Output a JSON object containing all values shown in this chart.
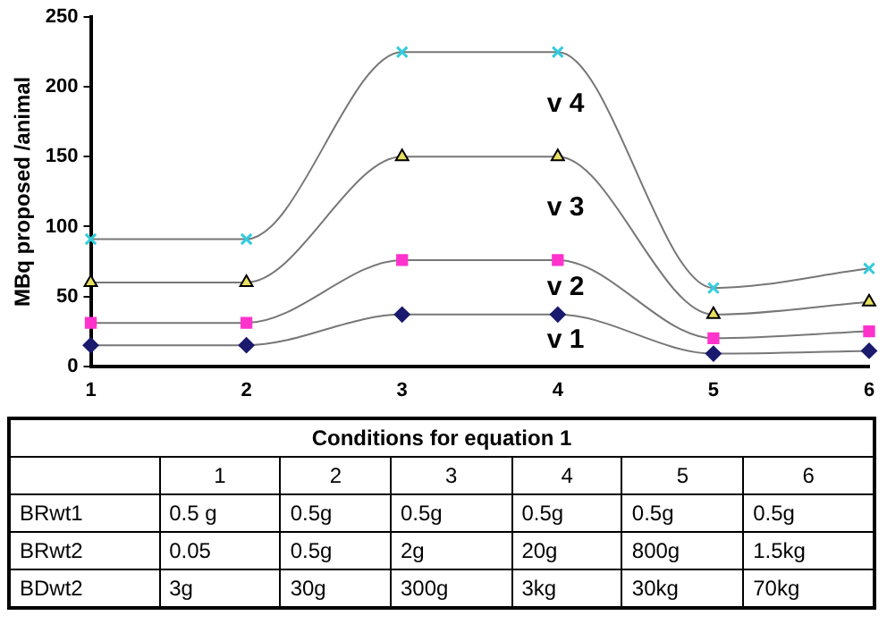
{
  "chart_data": {
    "type": "line",
    "ylabel": "MBq proposed /animal",
    "x": [
      1,
      2,
      3,
      4,
      5,
      6
    ],
    "xlim": [
      1,
      6
    ],
    "xticks": [
      1,
      2,
      3,
      4,
      5,
      6
    ],
    "ylim": [
      0,
      250
    ],
    "yticks": [
      0,
      50,
      100,
      150,
      200,
      250
    ],
    "grid": false,
    "legend": false,
    "series": [
      {
        "name": "v 1",
        "color": "#1a1a6e",
        "marker": "diamond",
        "values": [
          15,
          15,
          37,
          37,
          9,
          11
        ]
      },
      {
        "name": "v 2",
        "color": "#ff33cc",
        "marker": "square",
        "values": [
          31,
          31,
          76,
          76,
          20,
          25
        ]
      },
      {
        "name": "v 3",
        "color": "#e8e060",
        "marker": "triangle",
        "values": [
          60,
          60,
          150,
          150,
          37,
          46
        ]
      },
      {
        "name": "v 4",
        "color": "#33ccdd",
        "marker": "cross",
        "values": [
          91,
          91,
          225,
          225,
          56,
          70
        ]
      }
    ],
    "annotations": [
      "Conditions for equation 1",
      "1",
      "2",
      "3",
      "4",
      "5",
      "6",
      "BRwt1",
      "0.5 g",
      "0.5g",
      "0.5g",
      "0.5g",
      "0.5g",
      "0.5g",
      "BRwt2",
      "0.05",
      "0.5g",
      "2g",
      "20g",
      "800g",
      "1.5kg",
      "BDwt2",
      "3g",
      "30g",
      "300g",
      "3kg",
      "30kg",
      "70kg"
    ]
  }
}
